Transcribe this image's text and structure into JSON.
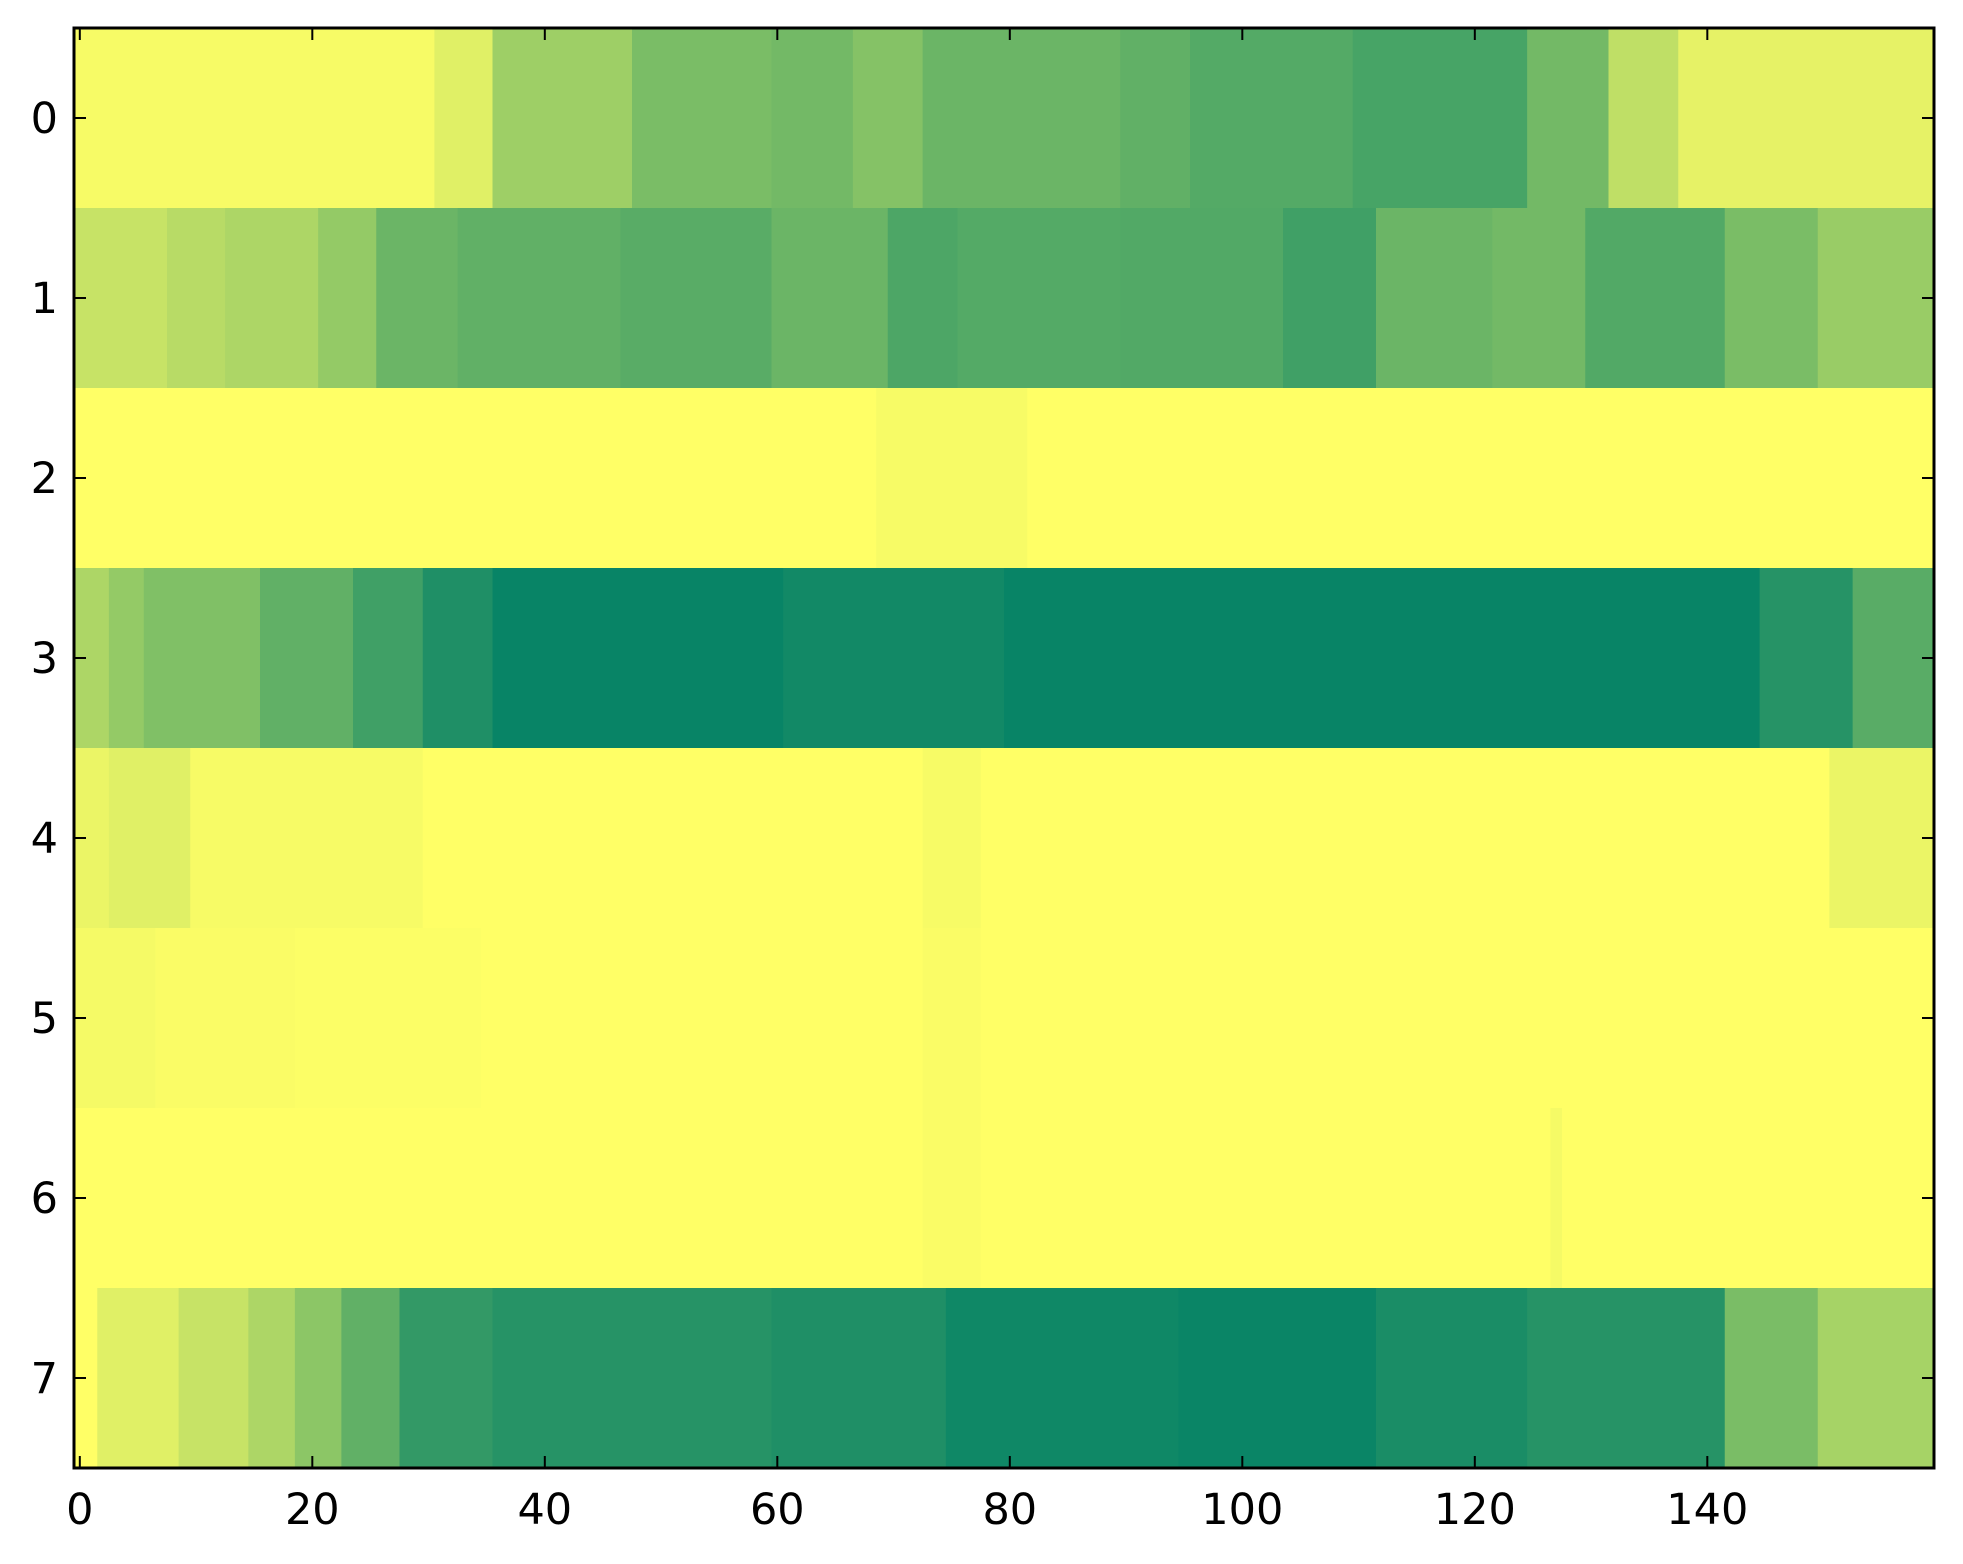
{
  "chart_data": {
    "type": "heatmap",
    "colormap": "summer",
    "colormap_stops": [
      "#008066",
      "#ffff66"
    ],
    "rows": 8,
    "columns": 160,
    "xlim": [
      -0.5,
      159.5
    ],
    "ylim": [
      7.5,
      -0.5
    ],
    "xticks": [
      0,
      20,
      40,
      60,
      80,
      100,
      120,
      140
    ],
    "xtick_labels": [
      "0",
      "20",
      "40",
      "60",
      "80",
      "100",
      "120",
      "140"
    ],
    "yticks": [
      0,
      1,
      2,
      3,
      4,
      5,
      6,
      7
    ],
    "ytick_labels": [
      "0",
      "1",
      "2",
      "3",
      "4",
      "5",
      "6",
      "7"
    ],
    "grid": false,
    "legend": "none",
    "value_scale": "normalized 0 (dark green) to 1 (yellow)",
    "row_profiles": [
      {
        "row": 0,
        "segments": [
          [
            0,
            31,
            0.97
          ],
          [
            31,
            36,
            0.88
          ],
          [
            36,
            48,
            0.62
          ],
          [
            48,
            60,
            0.48
          ],
          [
            60,
            67,
            0.45
          ],
          [
            67,
            73,
            0.52
          ],
          [
            73,
            90,
            0.42
          ],
          [
            90,
            96,
            0.38
          ],
          [
            96,
            110,
            0.33
          ],
          [
            110,
            125,
            0.28
          ],
          [
            125,
            132,
            0.45
          ],
          [
            132,
            138,
            0.75
          ],
          [
            138,
            160,
            0.9
          ]
        ]
      },
      {
        "row": 1,
        "segments": [
          [
            0,
            8,
            0.78
          ],
          [
            8,
            13,
            0.72
          ],
          [
            13,
            21,
            0.68
          ],
          [
            21,
            26,
            0.58
          ],
          [
            26,
            33,
            0.42
          ],
          [
            33,
            47,
            0.38
          ],
          [
            47,
            60,
            0.35
          ],
          [
            60,
            70,
            0.42
          ],
          [
            70,
            76,
            0.3
          ],
          [
            76,
            90,
            0.33
          ],
          [
            90,
            104,
            0.32
          ],
          [
            104,
            112,
            0.25
          ],
          [
            112,
            122,
            0.42
          ],
          [
            122,
            130,
            0.45
          ],
          [
            130,
            142,
            0.32
          ],
          [
            142,
            150,
            0.48
          ],
          [
            150,
            160,
            0.6
          ]
        ]
      },
      {
        "row": 2,
        "segments": [
          [
            0,
            69,
            1.0
          ],
          [
            69,
            82,
            0.97
          ],
          [
            82,
            160,
            1.0
          ]
        ]
      },
      {
        "row": 3,
        "segments": [
          [
            0,
            3,
            0.68
          ],
          [
            3,
            6,
            0.58
          ],
          [
            6,
            16,
            0.5
          ],
          [
            16,
            24,
            0.38
          ],
          [
            24,
            30,
            0.25
          ],
          [
            30,
            36,
            0.12
          ],
          [
            36,
            61,
            0.03
          ],
          [
            61,
            80,
            0.07
          ],
          [
            80,
            145,
            0.03
          ],
          [
            145,
            153,
            0.15
          ],
          [
            153,
            160,
            0.35
          ]
        ]
      },
      {
        "row": 4,
        "segments": [
          [
            0,
            3,
            0.92
          ],
          [
            3,
            10,
            0.88
          ],
          [
            10,
            30,
            0.97
          ],
          [
            30,
            73,
            1.0
          ],
          [
            73,
            78,
            0.97
          ],
          [
            78,
            151,
            1.0
          ],
          [
            151,
            160,
            0.92
          ]
        ]
      },
      {
        "row": 5,
        "segments": [
          [
            0,
            7,
            0.96
          ],
          [
            7,
            19,
            0.98
          ],
          [
            19,
            35,
            0.99
          ],
          [
            35,
            73,
            1.0
          ],
          [
            73,
            78,
            0.98
          ],
          [
            78,
            160,
            1.0
          ]
        ]
      },
      {
        "row": 6,
        "segments": [
          [
            0,
            73,
            1.0
          ],
          [
            73,
            78,
            0.98
          ],
          [
            78,
            127,
            1.0
          ],
          [
            127,
            128,
            0.96
          ],
          [
            128,
            160,
            1.0
          ]
        ]
      },
      {
        "row": 7,
        "segments": [
          [
            0,
            2,
            1.0
          ],
          [
            2,
            9,
            0.88
          ],
          [
            9,
            15,
            0.78
          ],
          [
            15,
            19,
            0.68
          ],
          [
            19,
            23,
            0.55
          ],
          [
            23,
            28,
            0.38
          ],
          [
            28,
            36,
            0.2
          ],
          [
            36,
            60,
            0.15
          ],
          [
            60,
            75,
            0.12
          ],
          [
            75,
            95,
            0.06
          ],
          [
            95,
            112,
            0.04
          ],
          [
            112,
            125,
            0.1
          ],
          [
            125,
            142,
            0.15
          ],
          [
            142,
            150,
            0.48
          ],
          [
            150,
            160,
            0.65
          ]
        ]
      }
    ]
  }
}
